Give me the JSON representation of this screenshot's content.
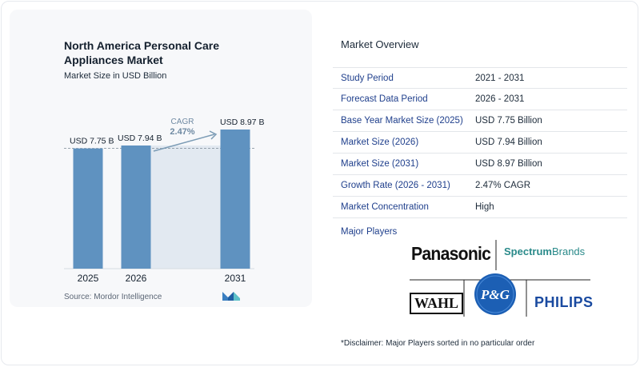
{
  "chart_data": {
    "type": "bar",
    "title": "North America Personal Care Appliances Market",
    "subtitle": "Market Size in USD Billion",
    "categories": [
      "2025",
      "2026",
      "2031"
    ],
    "values": [
      7.75,
      7.94,
      8.97
    ],
    "value_labels": [
      "USD 7.75 B",
      "USD 7.94 B",
      "USD 8.97 B"
    ],
    "cagr_label": "CAGR",
    "cagr_value": "2.47%",
    "bar_color": "#5f92c0",
    "shade_color": "#e2e9f1",
    "source": "Source:  Mordor Intelligence"
  },
  "overview": {
    "title": "Market Overview",
    "rows": [
      {
        "label": "Study Period",
        "value": "2021 - 2031"
      },
      {
        "label": "Forecast Data Period",
        "value": "2026 - 2031"
      },
      {
        "label": "Base Year Market Size (2025)",
        "value": "USD 7.75 Billion"
      },
      {
        "label": "Market Size (2026)",
        "value": "USD 7.94 Billion"
      },
      {
        "label": "Market Size (2031)",
        "value": "USD 8.97 Billion"
      },
      {
        "label": "Growth Rate (2026 - 2031)",
        "value": "2.47% CAGR"
      },
      {
        "label": "Market Concentration",
        "value": "High"
      }
    ]
  },
  "players": {
    "title": "Major Players",
    "logos": [
      "Panasonic",
      "Spectrum",
      "Brands",
      "WAHL",
      "P&G",
      "PHILIPS"
    ]
  },
  "disclaimer": "*Disclaimer: Major Players sorted in no particular order"
}
